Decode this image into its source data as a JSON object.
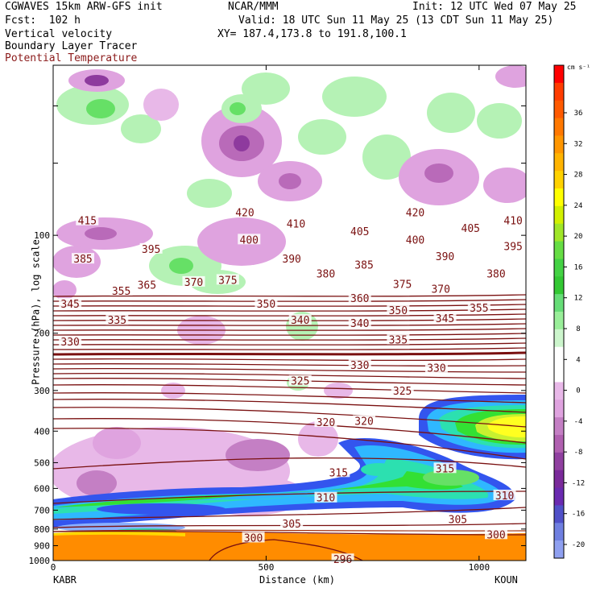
{
  "header": {
    "model_line": "CGWAVES 15km ARW-GFS init",
    "fcst_line": "Fcst:  102 h",
    "org": "NCAR/MMM",
    "init_line": "Init: 12 UTC Wed 07 May 25",
    "valid_line": "Valid: 18 UTC Sun 11 May 25 (13 CDT Sun 11 May 25)",
    "xy_line": "XY= 187.4,173.8 to 191.8,100.1",
    "field1": "Vertical velocity",
    "field2": "Boundary Layer Tracer",
    "field3": "Potential Temperature"
  },
  "colors": {
    "theta": "#7a1010",
    "bl_tracer": "#ff8c00",
    "field3_text": "#8b1a1a"
  },
  "chart_data": {
    "type": "contour-cross-section",
    "ylabel": "Pressure (hPa), log scale",
    "xlabel": "Distance (km)",
    "x_range": [
      0,
      1110
    ],
    "y_range_hpa": [
      1000,
      30
    ],
    "x_ticks": [
      "0",
      "500",
      "1000"
    ],
    "y_ticks": [
      "100",
      "200",
      "300",
      "400",
      "500",
      "600",
      "700",
      "800",
      "900",
      "1000"
    ],
    "left_endpoint": "KABR",
    "right_endpoint": "KOUN",
    "colorbar": {
      "unit": "cm s⁻¹",
      "ticks": [
        "36",
        "32",
        "28",
        "24",
        "20",
        "16",
        "12",
        "8",
        "4",
        "0",
        "-4",
        "-8",
        "-12",
        "-16",
        "-20"
      ]
    },
    "theta_contours": [
      {
        "label": "415",
        "x": 80,
        "p": 90
      },
      {
        "label": "420",
        "x": 450,
        "p": 85
      },
      {
        "label": "420",
        "x": 850,
        "p": 85
      },
      {
        "label": "410",
        "x": 570,
        "p": 92
      },
      {
        "label": "410",
        "x": 1080,
        "p": 90
      },
      {
        "label": "405",
        "x": 720,
        "p": 97
      },
      {
        "label": "405",
        "x": 980,
        "p": 95
      },
      {
        "label": "400",
        "x": 460,
        "p": 103
      },
      {
        "label": "400",
        "x": 850,
        "p": 103
      },
      {
        "label": "395",
        "x": 230,
        "p": 110
      },
      {
        "label": "395",
        "x": 1080,
        "p": 108
      },
      {
        "label": "390",
        "x": 560,
        "p": 118
      },
      {
        "label": "390",
        "x": 920,
        "p": 116
      },
      {
        "label": "385",
        "x": 70,
        "p": 118
      },
      {
        "label": "385",
        "x": 730,
        "p": 123
      },
      {
        "label": "380",
        "x": 640,
        "p": 131
      },
      {
        "label": "380",
        "x": 1040,
        "p": 131
      },
      {
        "label": "375",
        "x": 410,
        "p": 137
      },
      {
        "label": "375",
        "x": 820,
        "p": 141
      },
      {
        "label": "370",
        "x": 330,
        "p": 139
      },
      {
        "label": "370",
        "x": 910,
        "p": 146
      },
      {
        "label": "365",
        "x": 220,
        "p": 142
      },
      {
        "label": "360",
        "x": 720,
        "p": 156
      },
      {
        "label": "355",
        "x": 160,
        "p": 148
      },
      {
        "label": "355",
        "x": 1000,
        "p": 167
      },
      {
        "label": "350",
        "x": 500,
        "p": 162
      },
      {
        "label": "350",
        "x": 810,
        "p": 170
      },
      {
        "label": "345",
        "x": 40,
        "p": 162
      },
      {
        "label": "345",
        "x": 920,
        "p": 180
      },
      {
        "label": "340",
        "x": 580,
        "p": 182
      },
      {
        "label": "340",
        "x": 720,
        "p": 186
      },
      {
        "label": "335",
        "x": 150,
        "p": 182
      },
      {
        "label": "335",
        "x": 810,
        "p": 209
      },
      {
        "label": "330",
        "x": 40,
        "p": 212
      },
      {
        "label": "330",
        "x": 720,
        "p": 250
      },
      {
        "label": "330",
        "x": 900,
        "p": 255
      },
      {
        "label": "325",
        "x": 580,
        "p": 280
      },
      {
        "label": "325",
        "x": 820,
        "p": 300
      },
      {
        "label": "320",
        "x": 640,
        "p": 375
      },
      {
        "label": "320",
        "x": 730,
        "p": 372
      },
      {
        "label": "315",
        "x": 670,
        "p": 535
      },
      {
        "label": "315",
        "x": 920,
        "p": 520
      },
      {
        "label": "310",
        "x": 640,
        "p": 640
      },
      {
        "label": "310",
        "x": 1060,
        "p": 630
      },
      {
        "label": "305",
        "x": 560,
        "p": 770
      },
      {
        "label": "305",
        "x": 950,
        "p": 745
      },
      {
        "label": "300",
        "x": 470,
        "p": 850
      },
      {
        "label": "300",
        "x": 1040,
        "p": 830
      },
      {
        "label": "296",
        "x": 680,
        "p": 990
      }
    ]
  }
}
